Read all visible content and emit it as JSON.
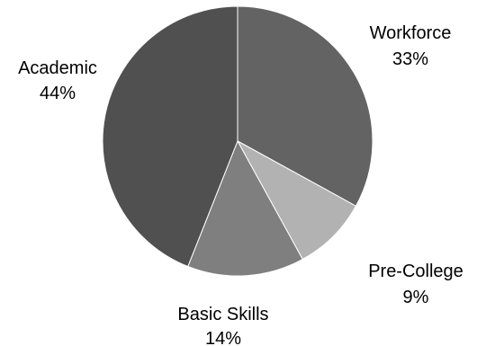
{
  "chart_data": {
    "type": "pie",
    "title": "",
    "start_angle_deg": 90,
    "direction": "clockwise",
    "slices": [
      {
        "label": "Workforce",
        "value": 33,
        "value_label": "33%",
        "color": "#636363"
      },
      {
        "label": "Pre-College",
        "value": 9,
        "value_label": "9%",
        "color": "#b2b2b2"
      },
      {
        "label": "Basic Skills",
        "value": 14,
        "value_label": "14%",
        "color": "#7f7f7f"
      },
      {
        "label": "Academic",
        "value": 44,
        "value_label": "44%",
        "color": "#505050"
      }
    ]
  }
}
